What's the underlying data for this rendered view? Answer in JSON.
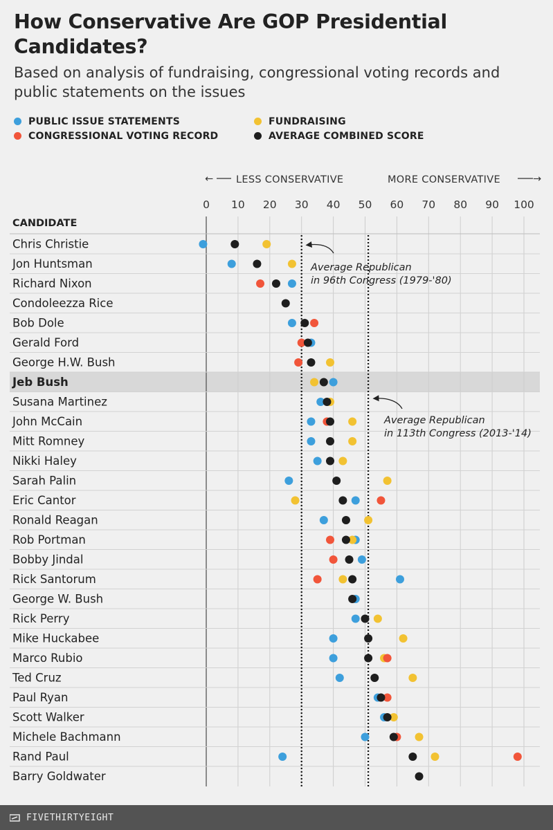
{
  "title": "How Conservative Are GOP Presidential Candidates?",
  "subtitle": "Based on analysis of fundraising, congressional voting records and public statements on the issues",
  "colors": {
    "public": "#3d9fdc",
    "fundraising": "#f2c232",
    "voting": "#f1553a",
    "average": "#1e1e1e",
    "highlight": "#d8d8d8"
  },
  "legend": {
    "public": "PUBLIC ISSUE STATEMENTS",
    "voting": "CONGRESSIONAL VOTING RECORD",
    "fundraising": "FUNDRAISING",
    "average": "AVERAGE COMBINED SCORE"
  },
  "footer": {
    "brand": "FIVETHIRTYEIGHT",
    "icon": "fivethirtyeight-logo-icon"
  },
  "chart_data": {
    "type": "scatter",
    "xlim": [
      0,
      100
    ],
    "xticks": [
      "0",
      "10",
      "20",
      "30",
      "40",
      "50",
      "60",
      "70",
      "80",
      "90",
      "100"
    ],
    "direction_left": "LESS CONSERVATIVE",
    "direction_right": "MORE CONSERVATIVE",
    "column_header": "CANDIDATE",
    "highlight": "Jeb Bush",
    "reference_lines": [
      {
        "value": 30,
        "label_line1": "Average Republican",
        "label_line2": "in 96th Congress (1979-'80)"
      },
      {
        "value": 51,
        "label_line1": "Average Republican",
        "label_line2": "in 113th Congress (2013-'14)"
      }
    ],
    "series_order": [
      "public",
      "fundraising",
      "voting",
      "average"
    ],
    "candidates": [
      {
        "name": "Chris Christie",
        "public": -1,
        "fundraising": 19,
        "voting": null,
        "average": 9
      },
      {
        "name": "Jon Huntsman",
        "public": 8,
        "fundraising": 27,
        "voting": null,
        "average": 16
      },
      {
        "name": "Richard Nixon",
        "public": 27,
        "fundraising": null,
        "voting": 17,
        "average": 22
      },
      {
        "name": "Condoleezza Rice",
        "public": null,
        "fundraising": null,
        "voting": null,
        "average": 25
      },
      {
        "name": "Bob Dole",
        "public": 27,
        "fundraising": null,
        "voting": 34,
        "average": 31
      },
      {
        "name": "Gerald Ford",
        "public": 33,
        "fundraising": null,
        "voting": 30,
        "average": 32
      },
      {
        "name": "George H.W. Bush",
        "public": null,
        "fundraising": 39,
        "voting": 29,
        "average": 33
      },
      {
        "name": "Jeb Bush",
        "public": 40,
        "fundraising": 34,
        "voting": null,
        "average": 37
      },
      {
        "name": "Susana Martinez",
        "public": 36,
        "fundraising": 39,
        "voting": null,
        "average": 38
      },
      {
        "name": "John McCain",
        "public": 33,
        "fundraising": 46,
        "voting": 38,
        "average": 39
      },
      {
        "name": "Mitt Romney",
        "public": 33,
        "fundraising": 46,
        "voting": null,
        "average": 39
      },
      {
        "name": "Nikki Haley",
        "public": 35,
        "fundraising": 43,
        "voting": null,
        "average": 39
      },
      {
        "name": "Sarah Palin",
        "public": 26,
        "fundraising": 57,
        "voting": null,
        "average": 41
      },
      {
        "name": "Eric Cantor",
        "public": 47,
        "fundraising": 28,
        "voting": 55,
        "average": 43
      },
      {
        "name": "Ronald Reagan",
        "public": 37,
        "fundraising": 51,
        "voting": null,
        "average": 44
      },
      {
        "name": "Rob Portman",
        "public": 47,
        "fundraising": 46,
        "voting": 39,
        "average": 44
      },
      {
        "name": "Bobby Jindal",
        "public": 49,
        "fundraising": null,
        "voting": 40,
        "average": 45
      },
      {
        "name": "Rick Santorum",
        "public": 61,
        "fundraising": 43,
        "voting": 35,
        "average": 46
      },
      {
        "name": "George W. Bush",
        "public": 47,
        "fundraising": null,
        "voting": null,
        "average": 46
      },
      {
        "name": "Rick Perry",
        "public": 47,
        "fundraising": 54,
        "voting": null,
        "average": 50
      },
      {
        "name": "Mike Huckabee",
        "public": 40,
        "fundraising": 62,
        "voting": null,
        "average": 51
      },
      {
        "name": "Marco Rubio",
        "public": 40,
        "fundraising": 56,
        "voting": 57,
        "average": 51
      },
      {
        "name": "Ted Cruz",
        "public": 42,
        "fundraising": 65,
        "voting": null,
        "average": 53
      },
      {
        "name": "Paul Ryan",
        "public": 54,
        "fundraising": null,
        "voting": 57,
        "average": 55
      },
      {
        "name": "Scott Walker",
        "public": 56,
        "fundraising": 59,
        "voting": null,
        "average": 57
      },
      {
        "name": "Michele Bachmann",
        "public": 50,
        "fundraising": 67,
        "voting": 60,
        "average": 59
      },
      {
        "name": "Rand Paul",
        "public": 24,
        "fundraising": 72,
        "voting": 98,
        "average": 65
      },
      {
        "name": "Barry Goldwater",
        "public": null,
        "fundraising": null,
        "voting": null,
        "average": 67
      }
    ]
  }
}
